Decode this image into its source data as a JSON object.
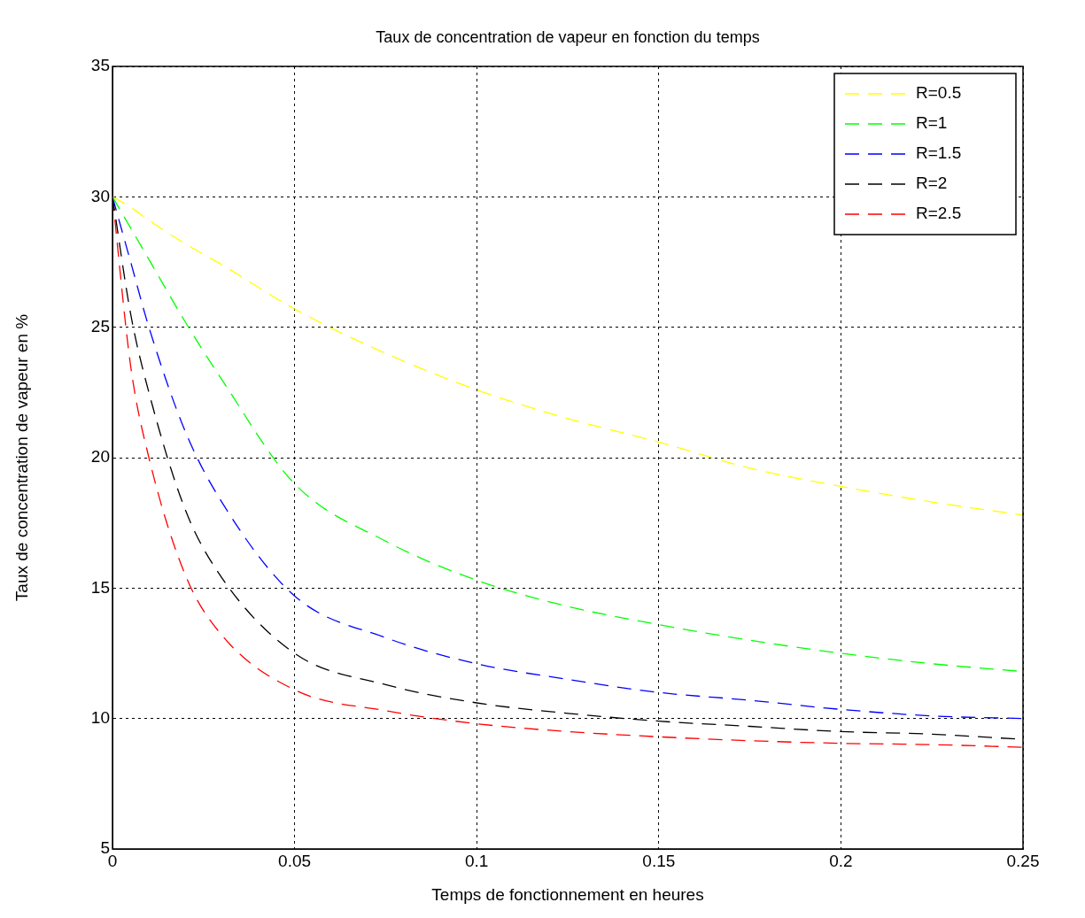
{
  "chart_data": {
    "type": "line",
    "title": "Taux de concentration de vapeur en fonction du temps",
    "xlabel": "Temps de fonctionnement en heures",
    "ylabel": "Taux de concentration de vapeur en %",
    "x": [
      0,
      0.005,
      0.01,
      0.02,
      0.03,
      0.05,
      0.075,
      0.1,
      0.125,
      0.15,
      0.175,
      0.2,
      0.225,
      0.25
    ],
    "series": [
      {
        "name": "R=0.5",
        "color": "#ffff00",
        "values": [
          30,
          29.6,
          29.1,
          28.2,
          27.4,
          25.7,
          24.0,
          22.6,
          21.5,
          20.6,
          19.6,
          18.9,
          18.3,
          17.8
        ]
      },
      {
        "name": "R=1",
        "color": "#00ff00",
        "values": [
          30,
          28.8,
          27.6,
          25.2,
          23.0,
          19.0,
          16.8,
          15.3,
          14.3,
          13.6,
          13.0,
          12.5,
          12.1,
          11.8
        ]
      },
      {
        "name": "R=1.5",
        "color": "#0000ff",
        "values": [
          30,
          27.5,
          25.0,
          21.0,
          18.3,
          14.7,
          13.1,
          12.1,
          11.5,
          11.0,
          10.7,
          10.35,
          10.1,
          10.0
        ]
      },
      {
        "name": "R=2",
        "color": "#000000",
        "values": [
          30,
          25.5,
          22.5,
          18.0,
          15.4,
          12.5,
          11.3,
          10.6,
          10.2,
          9.9,
          9.7,
          9.5,
          9.4,
          9.2
        ]
      },
      {
        "name": "R=2.5",
        "color": "#ff0000",
        "values": [
          30,
          23.5,
          20.0,
          15.5,
          13.2,
          11.1,
          10.3,
          9.8,
          9.5,
          9.3,
          9.15,
          9.05,
          9.0,
          8.9
        ]
      }
    ],
    "xlim": [
      0,
      0.25
    ],
    "xticks": [
      0,
      0.05,
      0.1,
      0.15,
      0.2,
      0.25
    ],
    "ylim": [
      5,
      35
    ],
    "yticks": [
      5,
      10,
      15,
      20,
      25,
      30,
      35
    ],
    "grid": true,
    "legend": "top right",
    "marker": "none",
    "line_style": "dashed"
  }
}
